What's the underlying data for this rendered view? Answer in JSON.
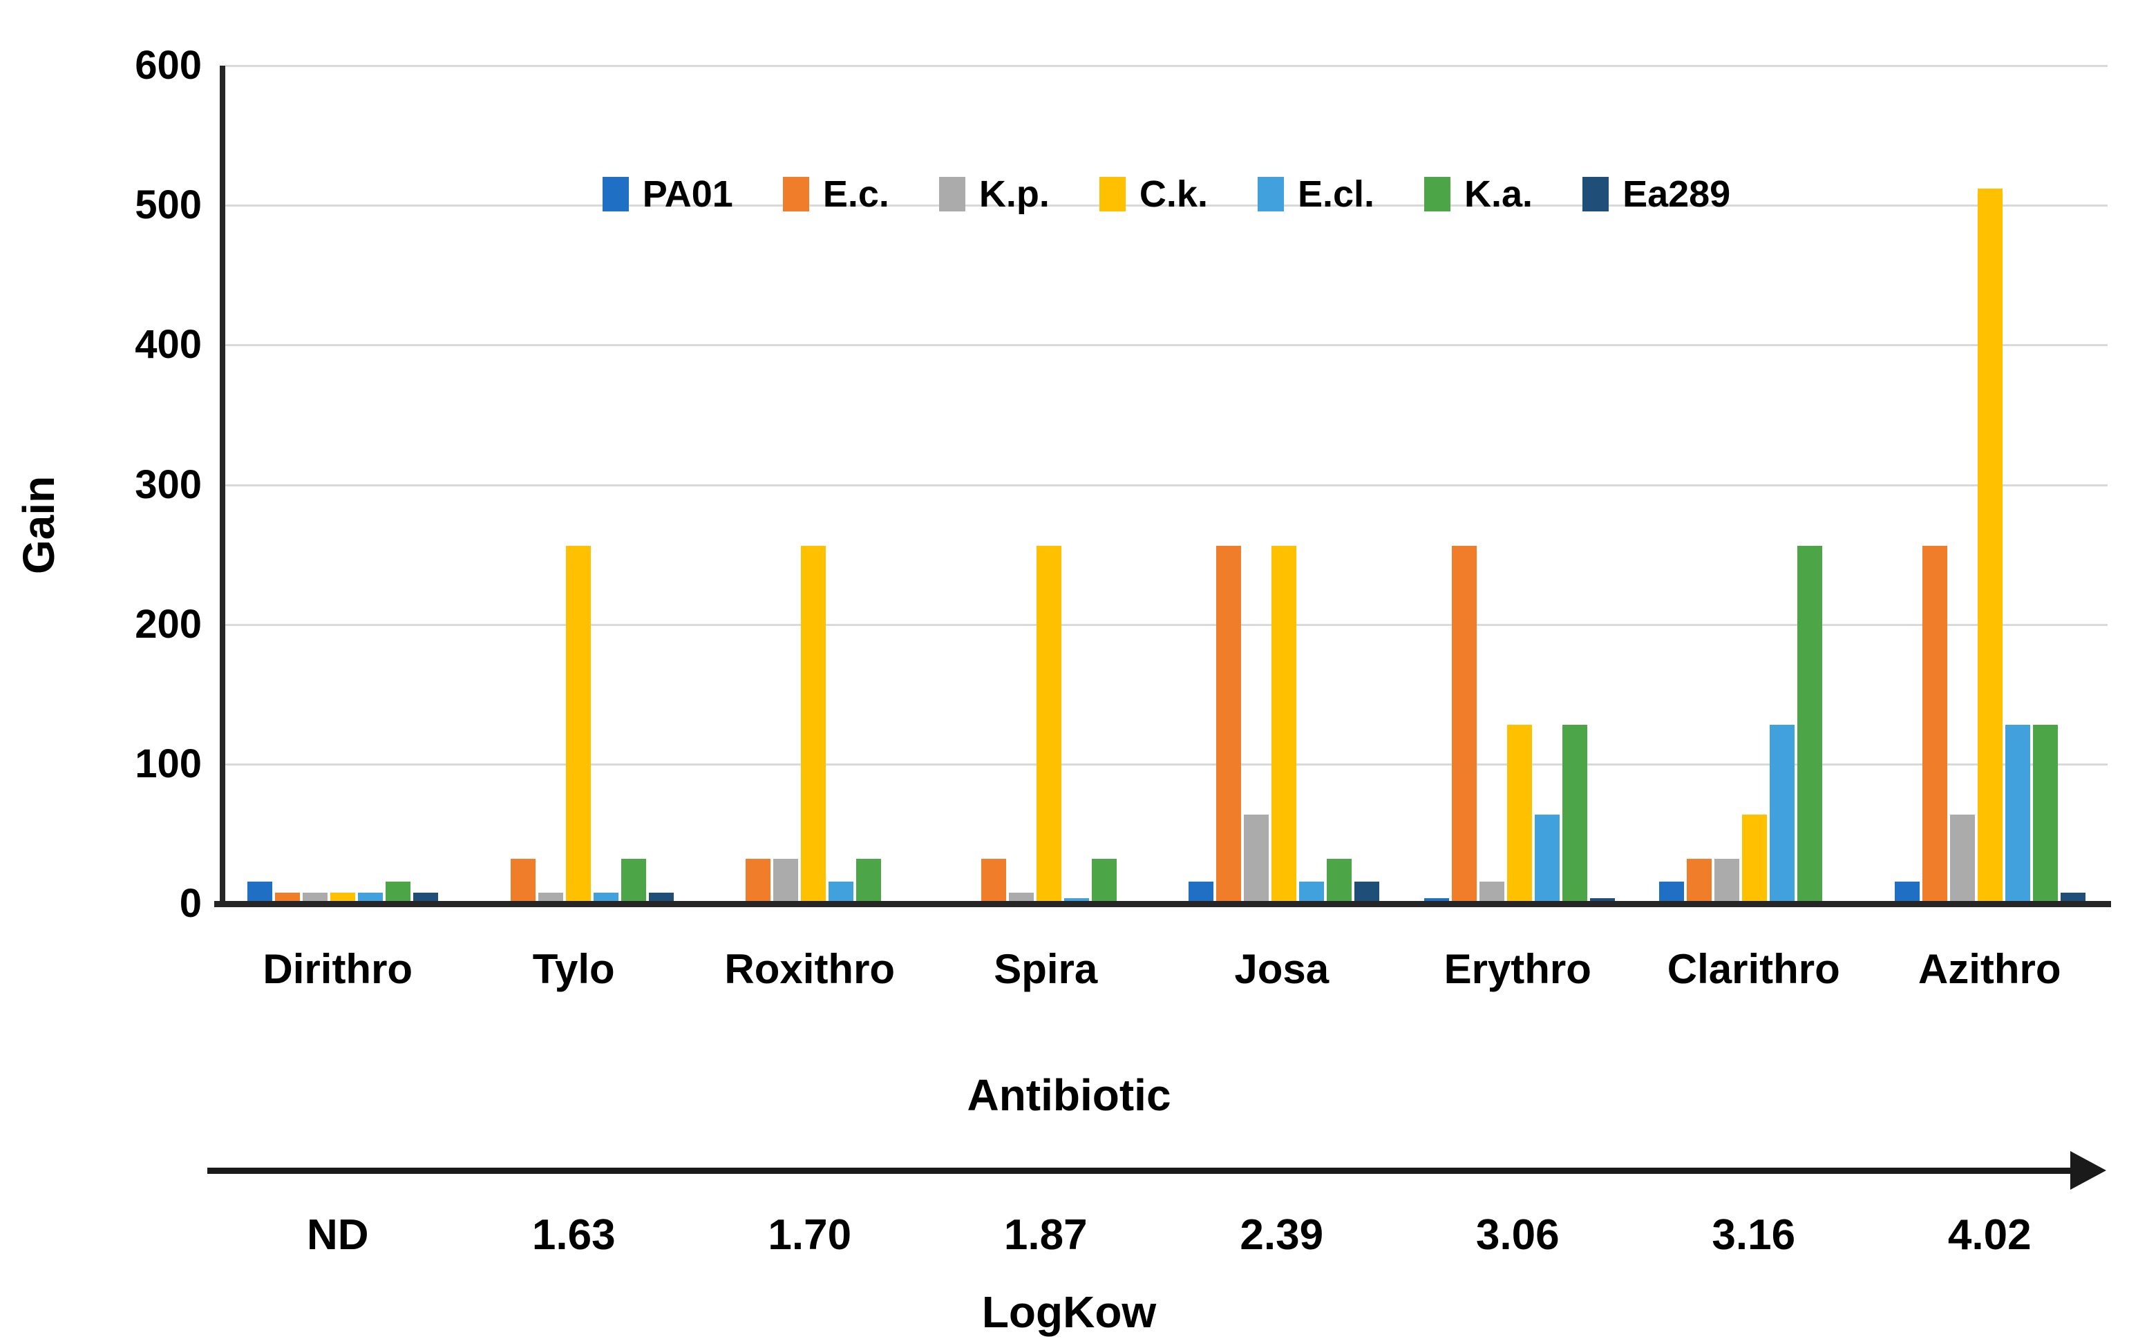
{
  "labels": {
    "gain": "Gain",
    "antibiotic": "Antibiotic",
    "logkow": "LogKow"
  },
  "chart_data": {
    "type": "bar",
    "title": "",
    "ylabel": "Gain",
    "xlabel": "Antibiotic",
    "x2label": "LogKow",
    "ylim": [
      0,
      600
    ],
    "yticks": [
      0,
      100,
      200,
      300,
      400,
      500,
      600
    ],
    "grid": true,
    "legend_position": "top-inside-horizontal",
    "categories": [
      "Dirithro",
      "Tylo",
      "Roxithro",
      "Spira",
      "Josa",
      "Erythro",
      "Clarithro",
      "Azithro"
    ],
    "logkow_values": [
      "ND",
      "1.63",
      "1.70",
      "1.87",
      "2.39",
      "3.06",
      "3.16",
      "4.02"
    ],
    "series": [
      {
        "name": "PA01",
        "color": "#1F6FC5",
        "values": [
          16,
          0,
          0,
          0,
          16,
          4,
          16,
          16
        ]
      },
      {
        "name": "E.c.",
        "color": "#F07D2A",
        "values": [
          8,
          32,
          32,
          32,
          256,
          256,
          32,
          256
        ]
      },
      {
        "name": "K.p.",
        "color": "#ABABAB",
        "values": [
          8,
          8,
          32,
          8,
          64,
          16,
          32,
          64
        ]
      },
      {
        "name": "C.k.",
        "color": "#FFC000",
        "values": [
          8,
          256,
          256,
          256,
          256,
          128,
          64,
          512
        ]
      },
      {
        "name": "E.cl.",
        "color": "#41A1DD",
        "values": [
          8,
          8,
          16,
          4,
          16,
          64,
          128,
          128
        ]
      },
      {
        "name": "K.a.",
        "color": "#4CA546",
        "values": [
          16,
          32,
          32,
          32,
          32,
          128,
          256,
          128
        ]
      },
      {
        "name": "Ea289",
        "color": "#1F4E79",
        "values": [
          8,
          8,
          0,
          0,
          16,
          4,
          0,
          8
        ]
      }
    ],
    "axis_color": "#262626",
    "gridline_color": "#D9D9D9"
  }
}
